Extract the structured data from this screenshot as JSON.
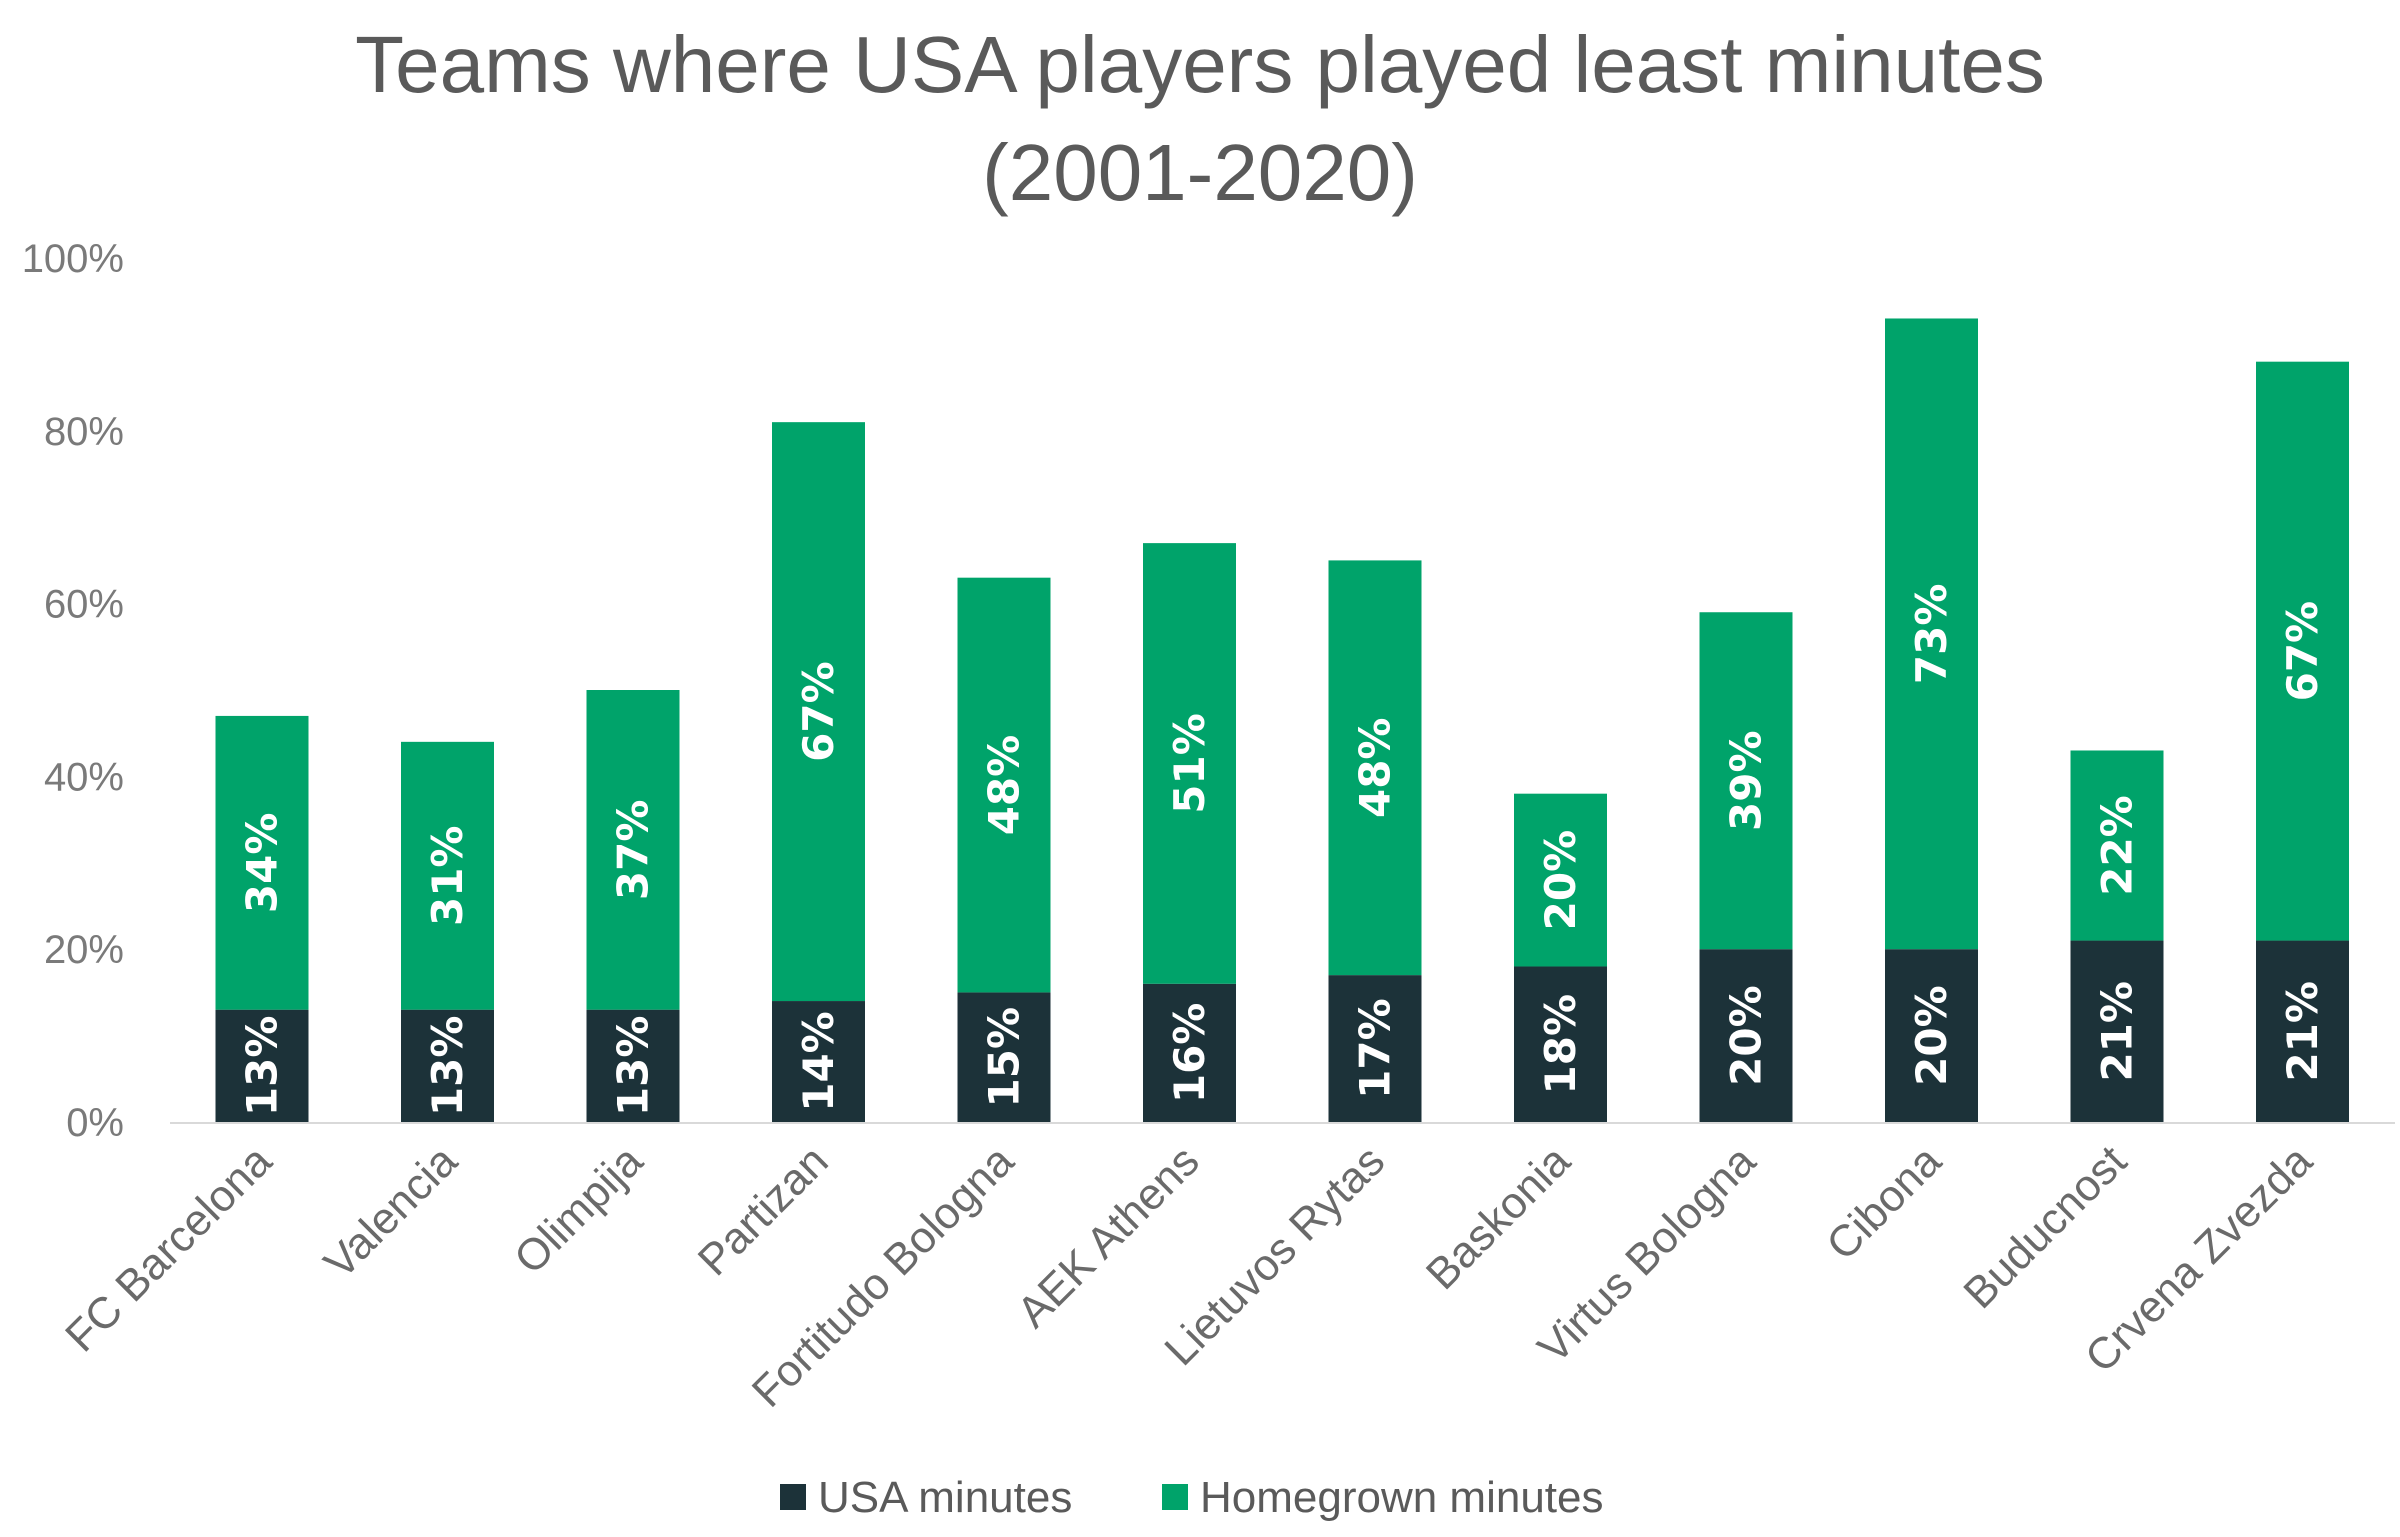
{
  "chart_data": {
    "type": "bar",
    "stacked": true,
    "title_lines": [
      "Teams where USA players played least minutes",
      "(2001-2020)"
    ],
    "categories": [
      "FC Barcelona",
      "Valencia",
      "Olimpija",
      "Partizan",
      "Fortitudo Bologna",
      "AEK Athens",
      "Lietuvos Rytas",
      "Baskonia",
      "Virtus Bologna",
      "Cibona",
      "Buducnost",
      "Crvena Zvezda"
    ],
    "series": [
      {
        "name": "USA minutes",
        "color": "#1c3239",
        "values": [
          13,
          13,
          13,
          14,
          15,
          16,
          17,
          18,
          20,
          20,
          21,
          21
        ],
        "labels": [
          "13%",
          "13%",
          "13%",
          "14%",
          "15%",
          "16%",
          "17%",
          "18%",
          "20%",
          "20%",
          "21%",
          "21%"
        ]
      },
      {
        "name": "Homegrown minutes",
        "color": "#00a36a",
        "values": [
          34,
          31,
          37,
          67,
          48,
          51,
          48,
          20,
          39,
          73,
          22,
          67
        ],
        "labels": [
          "34%",
          "31%",
          "37%",
          "67%",
          "48%",
          "51%",
          "48%",
          "20%",
          "39%",
          "73%",
          "22%",
          "67%"
        ]
      }
    ],
    "ylim": [
      0,
      100
    ],
    "yticks": [
      "0%",
      "20%",
      "40%",
      "60%",
      "80%",
      "100%"
    ],
    "legend_position": "bottom",
    "grid": false
  }
}
